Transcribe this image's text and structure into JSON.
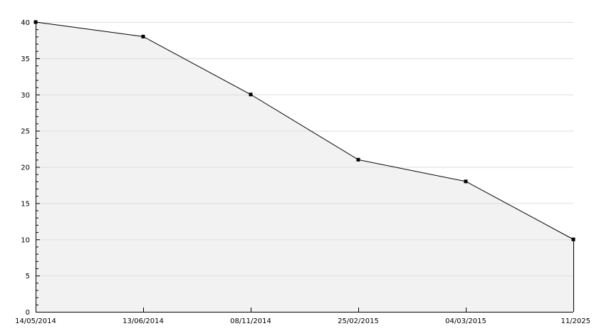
{
  "chart_data": {
    "type": "area",
    "title": "",
    "xlabel": "",
    "ylabel": "",
    "categories": [
      "14/05/2014",
      "13/06/2014",
      "08/11/2014",
      "25/02/2015",
      "04/03/2015",
      "11/2025"
    ],
    "series": [
      {
        "values": [
          40,
          38,
          30,
          21,
          18,
          10
        ]
      }
    ],
    "ylim": [
      0,
      40
    ],
    "yticks": [
      0,
      5,
      10,
      15,
      20,
      25,
      30,
      35,
      40
    ],
    "grid": true,
    "colors": {
      "fill": "#f2f2f2",
      "line": "#000000",
      "grid": "#dddddd"
    }
  }
}
